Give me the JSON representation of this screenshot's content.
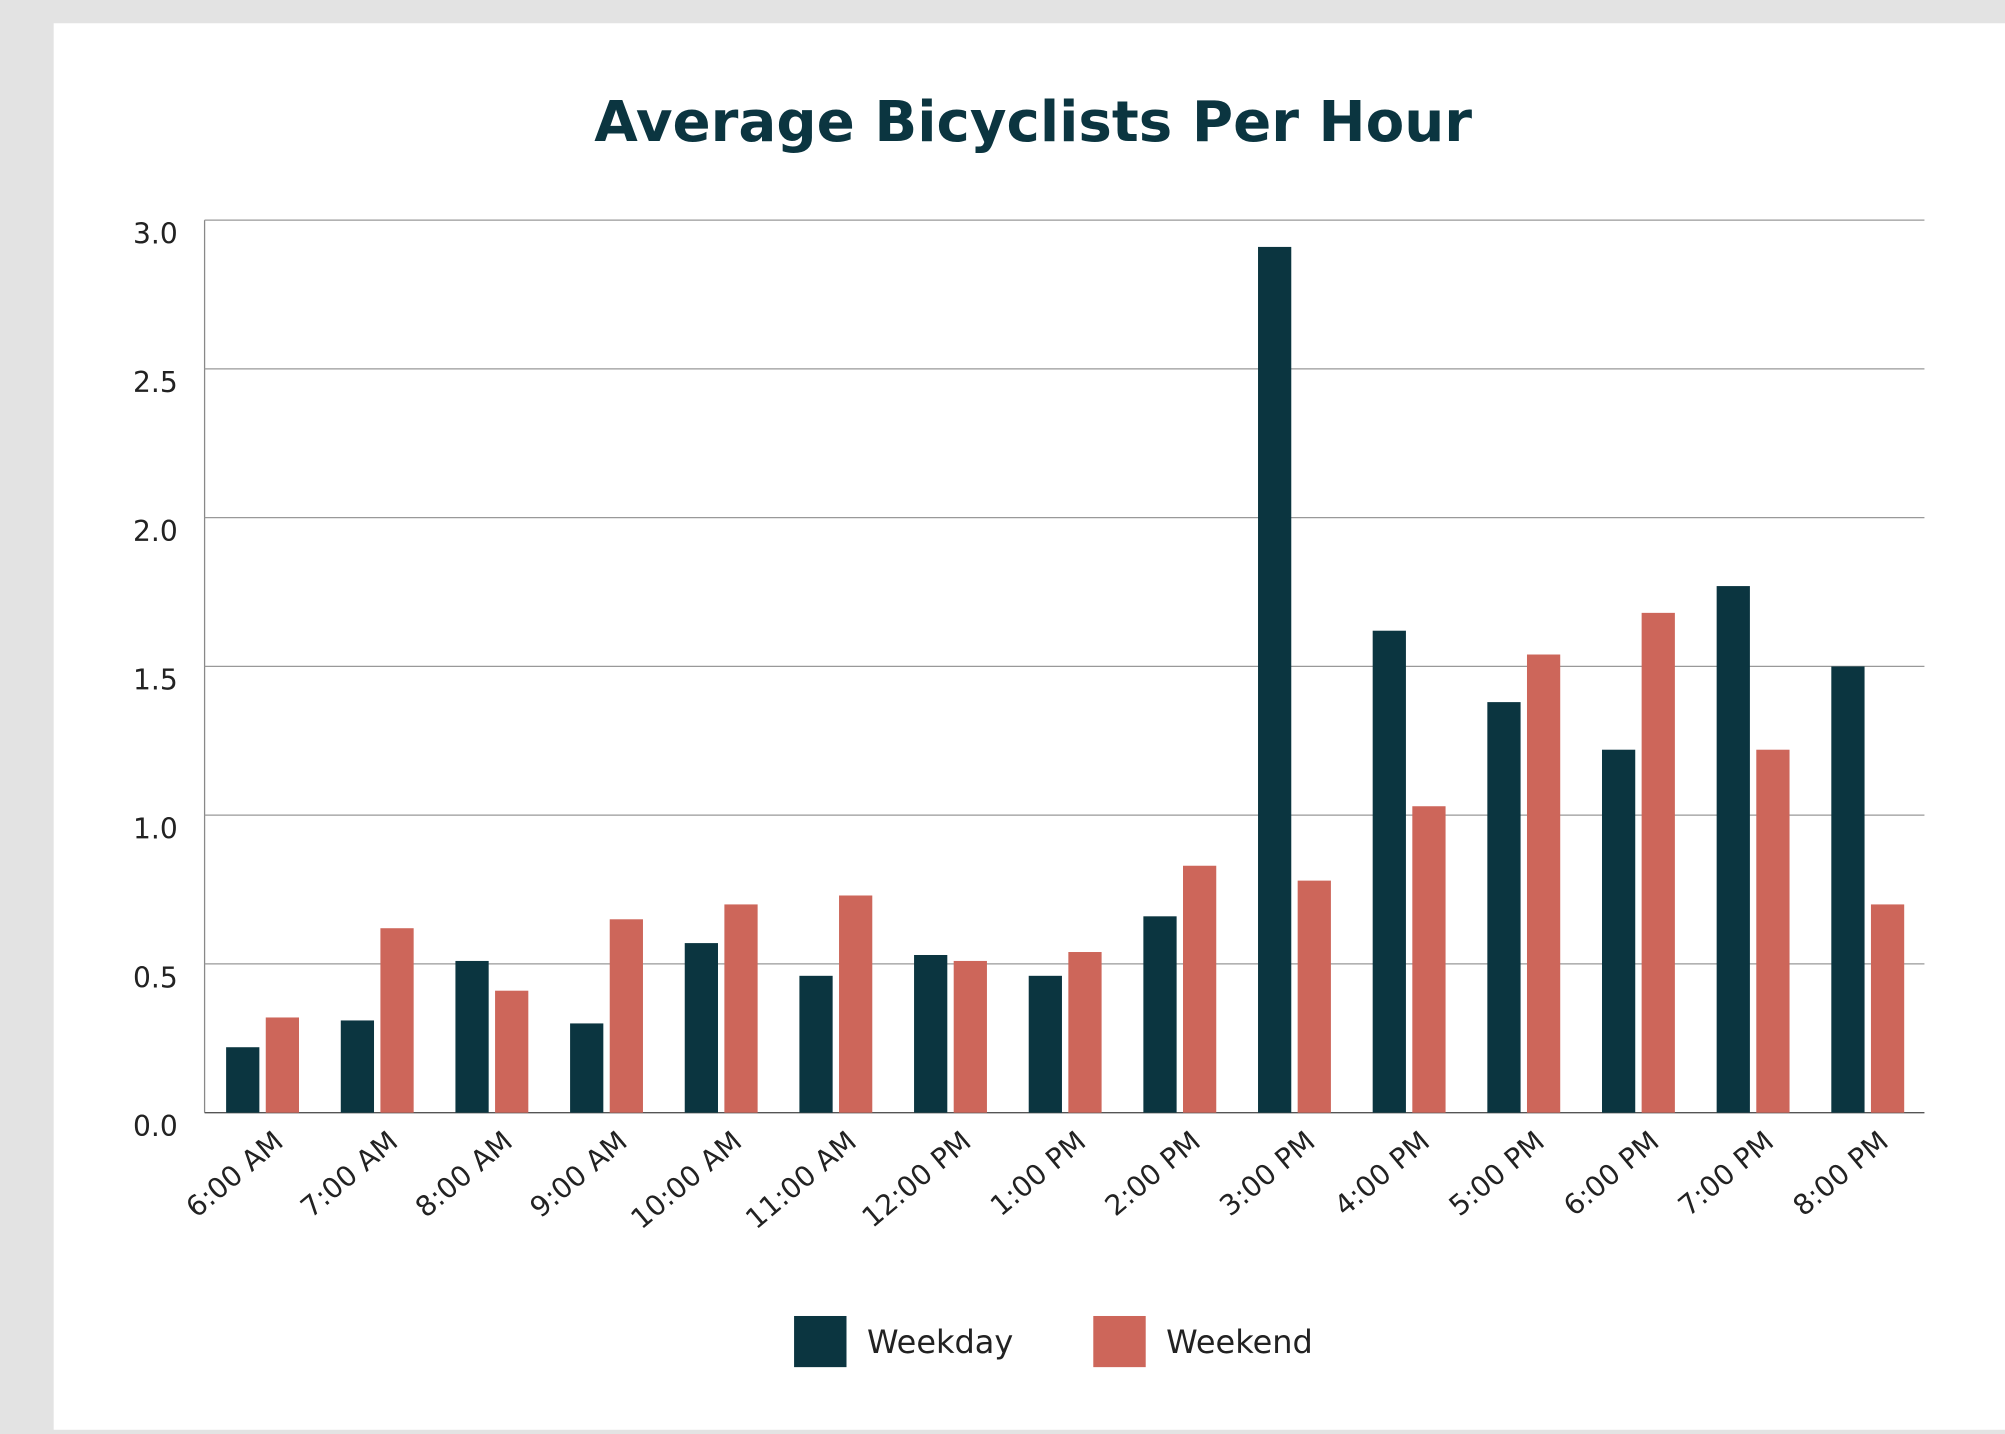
{
  "chart_data": {
    "type": "bar",
    "title": "Average Bicyclists Per Hour",
    "categories": [
      "6:00 AM",
      "7:00 AM",
      "8:00 AM",
      "9:00 AM",
      "10:00 AM",
      "11:00 AM",
      "12:00 PM",
      "1:00 PM",
      "2:00 PM",
      "3:00 PM",
      "4:00 PM",
      "5:00 PM",
      "6:00 PM",
      "7:00 PM",
      "8:00 PM"
    ],
    "series": [
      {
        "name": "Weekday",
        "color": "#0b3540",
        "values": [
          0.22,
          0.31,
          0.51,
          0.3,
          0.57,
          0.46,
          0.53,
          0.46,
          0.66,
          2.91,
          1.62,
          1.38,
          1.22,
          1.77,
          1.5
        ]
      },
      {
        "name": "Weekend",
        "color": "#cd665a",
        "values": [
          0.32,
          0.62,
          0.41,
          0.65,
          0.7,
          0.73,
          0.51,
          0.54,
          0.83,
          0.78,
          1.03,
          1.54,
          1.68,
          1.22,
          0.7
        ]
      }
    ],
    "ylim": [
      0,
      3
    ],
    "yticks": [
      {
        "value": 0,
        "label": "0.0"
      },
      0.5,
      {
        "value": 1,
        "label": "1.0"
      },
      1.5,
      {
        "value": 2,
        "label": "2.0"
      },
      2.5,
      {
        "value": 3,
        "label": "3.0"
      }
    ],
    "grid": true,
    "legend": "bottom"
  }
}
